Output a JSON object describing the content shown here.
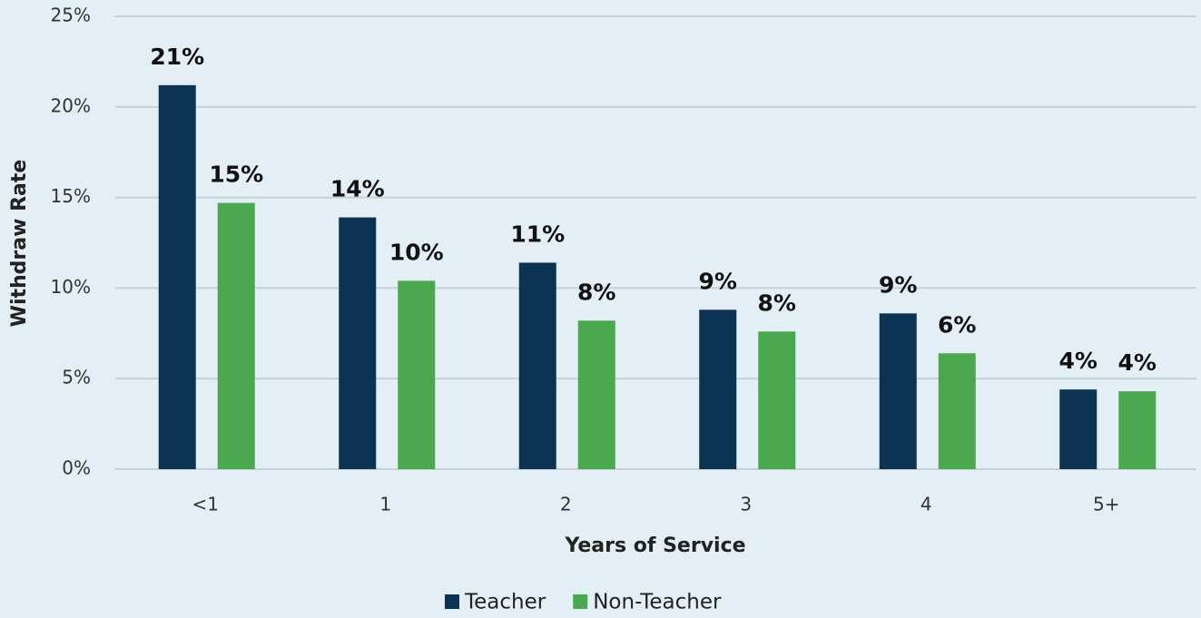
{
  "chart_data": {
    "type": "bar",
    "x_label": "Years of Service",
    "y_label": "Withdraw Rate",
    "categories": [
      "<1",
      "1",
      "2",
      "3",
      "4",
      "5+"
    ],
    "series": [
      {
        "name": "Teacher",
        "color": "#0b3352",
        "values": [
          21.2,
          13.9,
          11.4,
          8.8,
          8.6,
          4.4
        ],
        "value_labels": [
          "21%",
          "14%",
          "11%",
          "9%",
          "9%",
          "4%"
        ]
      },
      {
        "name": "Non-Teacher",
        "color": "#4aa84f",
        "values": [
          14.7,
          10.4,
          8.2,
          7.6,
          6.4,
          4.3
        ],
        "value_labels": [
          "15%",
          "10%",
          "8%",
          "8%",
          "6%",
          "4%"
        ]
      }
    ],
    "ylim": [
      0,
      25
    ],
    "yticks": [
      {
        "value": 0,
        "label": "0%"
      },
      {
        "value": 5,
        "label": "5%"
      },
      {
        "value": 10,
        "label": "10%"
      },
      {
        "value": 15,
        "label": "15%"
      },
      {
        "value": 20,
        "label": "20%"
      },
      {
        "value": 25,
        "label": "25%"
      }
    ],
    "grid": true,
    "legend": "bottom"
  }
}
